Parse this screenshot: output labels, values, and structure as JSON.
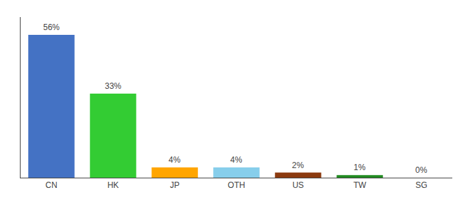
{
  "chart_data": {
    "type": "bar",
    "categories": [
      "CN",
      "HK",
      "JP",
      "OTH",
      "US",
      "TW",
      "SG"
    ],
    "values": [
      56,
      33,
      4,
      4,
      2,
      1,
      0
    ],
    "value_labels": [
      "56%",
      "33%",
      "4%",
      "4%",
      "2%",
      "1%",
      "0%"
    ],
    "colors": [
      "#4472C4",
      "#33CC33",
      "#FFA500",
      "#87CEEB",
      "#8B3A0F",
      "#228B22",
      "#C8C8C8"
    ],
    "ylim": [
      0,
      63
    ],
    "yticks": [],
    "data_labels": true,
    "tick_labels": "x",
    "grid": false
  }
}
